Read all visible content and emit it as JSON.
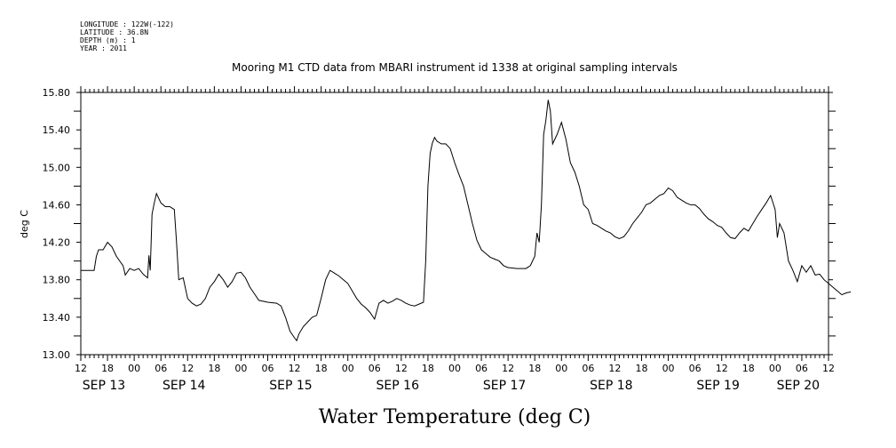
{
  "metadata": [
    "LONGITUDE : 122W(-122)",
    "LATITUDE : 36.8N",
    "DEPTH (m) : 1",
    "YEAR : 2011"
  ],
  "chart_data": {
    "type": "line",
    "title": "Mooring M1 CTD data from MBARI instrument id 1338 at original sampling intervals",
    "xlabel": "Water Temperature (deg C)",
    "ylabel": "deg C",
    "ylim": [
      13.0,
      15.8
    ],
    "y_ticks": [
      "13.00",
      "13.40",
      "13.80",
      "14.20",
      "14.60",
      "15.00",
      "15.40",
      "15.80"
    ],
    "xlim_hours": [
      0,
      168
    ],
    "x_hour_ticks": [
      "12",
      "18",
      "00",
      "06",
      "12",
      "18",
      "00",
      "06",
      "12",
      "18",
      "00",
      "06",
      "12",
      "18",
      "00",
      "06",
      "12",
      "18",
      "00",
      "06",
      "12",
      "18",
      "00",
      "06",
      "12",
      "18",
      "00",
      "06",
      "12"
    ],
    "x_date_labels": [
      {
        "label": "SEP 13",
        "hour": 0
      },
      {
        "label": "SEP 14",
        "hour": 18
      },
      {
        "label": "SEP 15",
        "hour": 42
      },
      {
        "label": "SEP 16",
        "hour": 66
      },
      {
        "label": "SEP 17",
        "hour": 90
      },
      {
        "label": "SEP 18",
        "hour": 114
      },
      {
        "label": "SEP 19",
        "hour": 138
      },
      {
        "label": "SEP 20",
        "hour": 156
      }
    ],
    "x_unit": "hours since SEP 13 12:00",
    "series": [
      {
        "name": "Water Temperature",
        "color": "#000000",
        "points": [
          [
            0,
            13.9
          ],
          [
            3,
            13.9
          ],
          [
            3.5,
            14.05
          ],
          [
            4,
            14.12
          ],
          [
            5,
            14.12
          ],
          [
            6,
            14.2
          ],
          [
            7,
            14.15
          ],
          [
            8,
            14.05
          ],
          [
            9.5,
            13.95
          ],
          [
            10,
            13.85
          ],
          [
            11,
            13.92
          ],
          [
            12,
            13.9
          ],
          [
            13,
            13.92
          ],
          [
            14,
            13.86
          ],
          [
            15,
            13.82
          ],
          [
            15.3,
            14.06
          ],
          [
            15.6,
            13.9
          ],
          [
            16,
            14.5
          ],
          [
            16.5,
            14.62
          ],
          [
            17,
            14.72
          ],
          [
            18,
            14.62
          ],
          [
            19,
            14.58
          ],
          [
            20,
            14.58
          ],
          [
            21,
            14.55
          ],
          [
            21.5,
            14.2
          ],
          [
            22,
            13.8
          ],
          [
            23,
            13.82
          ],
          [
            24,
            13.6
          ],
          [
            25,
            13.55
          ],
          [
            26,
            13.52
          ],
          [
            27,
            13.54
          ],
          [
            28,
            13.6
          ],
          [
            29,
            13.72
          ],
          [
            30,
            13.78
          ],
          [
            31,
            13.86
          ],
          [
            32,
            13.8
          ],
          [
            33,
            13.72
          ],
          [
            34,
            13.78
          ],
          [
            35,
            13.87
          ],
          [
            36,
            13.88
          ],
          [
            37,
            13.82
          ],
          [
            38,
            13.72
          ],
          [
            39,
            13.65
          ],
          [
            40,
            13.58
          ],
          [
            42,
            13.56
          ],
          [
            44,
            13.55
          ],
          [
            45,
            13.52
          ],
          [
            46,
            13.4
          ],
          [
            47,
            13.25
          ],
          [
            48,
            13.18
          ],
          [
            48.5,
            13.15
          ],
          [
            49,
            13.22
          ],
          [
            50,
            13.3
          ],
          [
            51,
            13.35
          ],
          [
            52,
            13.4
          ],
          [
            53,
            13.42
          ],
          [
            54,
            13.6
          ],
          [
            55,
            13.8
          ],
          [
            56,
            13.9
          ],
          [
            57,
            13.87
          ],
          [
            58,
            13.84
          ],
          [
            59,
            13.8
          ],
          [
            60,
            13.76
          ],
          [
            61,
            13.68
          ],
          [
            62,
            13.6
          ],
          [
            63,
            13.54
          ],
          [
            64,
            13.5
          ],
          [
            65,
            13.45
          ],
          [
            66,
            13.38
          ],
          [
            67,
            13.55
          ],
          [
            68,
            13.58
          ],
          [
            69,
            13.55
          ],
          [
            70,
            13.57
          ],
          [
            71,
            13.6
          ],
          [
            72,
            13.58
          ],
          [
            73,
            13.55
          ],
          [
            74,
            13.53
          ],
          [
            75,
            13.52
          ],
          [
            77,
            13.56
          ],
          [
            77.5,
            14.0
          ],
          [
            78,
            14.8
          ],
          [
            78.5,
            15.15
          ],
          [
            79,
            15.26
          ],
          [
            79.5,
            15.32
          ],
          [
            80,
            15.28
          ],
          [
            81,
            15.25
          ],
          [
            82,
            15.25
          ],
          [
            83,
            15.2
          ],
          [
            84,
            15.05
          ],
          [
            85,
            14.92
          ],
          [
            86,
            14.8
          ],
          [
            87,
            14.6
          ],
          [
            88,
            14.4
          ],
          [
            89,
            14.22
          ],
          [
            90,
            14.12
          ],
          [
            91,
            14.08
          ],
          [
            92,
            14.04
          ],
          [
            93,
            14.02
          ],
          [
            94,
            14.0
          ],
          [
            95,
            13.95
          ],
          [
            96,
            13.93
          ],
          [
            98,
            13.92
          ],
          [
            100,
            13.92
          ],
          [
            101,
            13.95
          ],
          [
            102,
            14.05
          ],
          [
            102.5,
            14.3
          ],
          [
            103,
            14.2
          ],
          [
            103.5,
            14.6
          ],
          [
            104,
            15.35
          ],
          [
            104.5,
            15.5
          ],
          [
            105,
            15.72
          ],
          [
            105.5,
            15.6
          ],
          [
            106,
            15.25
          ],
          [
            107,
            15.35
          ],
          [
            108,
            15.48
          ],
          [
            109,
            15.3
          ],
          [
            110,
            15.05
          ],
          [
            111,
            14.95
          ],
          [
            112,
            14.8
          ],
          [
            113,
            14.6
          ],
          [
            114,
            14.55
          ],
          [
            115,
            14.4
          ],
          [
            116,
            14.38
          ],
          [
            117,
            14.35
          ],
          [
            118,
            14.32
          ],
          [
            119,
            14.3
          ],
          [
            120,
            14.26
          ],
          [
            121,
            14.24
          ],
          [
            122,
            14.26
          ],
          [
            123,
            14.32
          ],
          [
            124,
            14.4
          ],
          [
            125,
            14.46
          ],
          [
            126,
            14.52
          ],
          [
            127,
            14.6
          ],
          [
            128,
            14.62
          ],
          [
            129,
            14.66
          ],
          [
            130,
            14.7
          ],
          [
            131,
            14.72
          ],
          [
            132,
            14.78
          ],
          [
            133,
            14.75
          ],
          [
            134,
            14.68
          ],
          [
            135,
            14.65
          ],
          [
            136,
            14.62
          ],
          [
            137,
            14.6
          ],
          [
            138,
            14.6
          ],
          [
            139,
            14.56
          ],
          [
            140,
            14.5
          ],
          [
            141,
            14.45
          ],
          [
            142,
            14.42
          ],
          [
            143,
            14.38
          ],
          [
            144,
            14.36
          ],
          [
            145,
            14.3
          ],
          [
            146,
            14.25
          ],
          [
            147,
            14.24
          ],
          [
            148,
            14.3
          ],
          [
            149,
            14.35
          ],
          [
            150,
            14.32
          ],
          [
            151,
            14.4
          ],
          [
            152,
            14.48
          ],
          [
            153,
            14.55
          ],
          [
            154,
            14.62
          ],
          [
            155,
            14.7
          ],
          [
            156,
            14.55
          ],
          [
            156.5,
            14.25
          ],
          [
            157,
            14.4
          ],
          [
            158,
            14.3
          ],
          [
            159,
            14.0
          ],
          [
            160,
            13.9
          ],
          [
            161,
            13.78
          ],
          [
            162,
            13.95
          ],
          [
            163,
            13.88
          ],
          [
            164,
            13.95
          ],
          [
            165,
            13.85
          ],
          [
            166,
            13.86
          ],
          [
            167,
            13.8
          ],
          [
            168,
            13.76
          ],
          [
            169,
            13.72
          ],
          [
            170,
            13.68
          ],
          [
            171,
            13.64
          ],
          [
            172,
            13.66
          ],
          [
            173,
            13.67
          ]
        ]
      }
    ]
  }
}
